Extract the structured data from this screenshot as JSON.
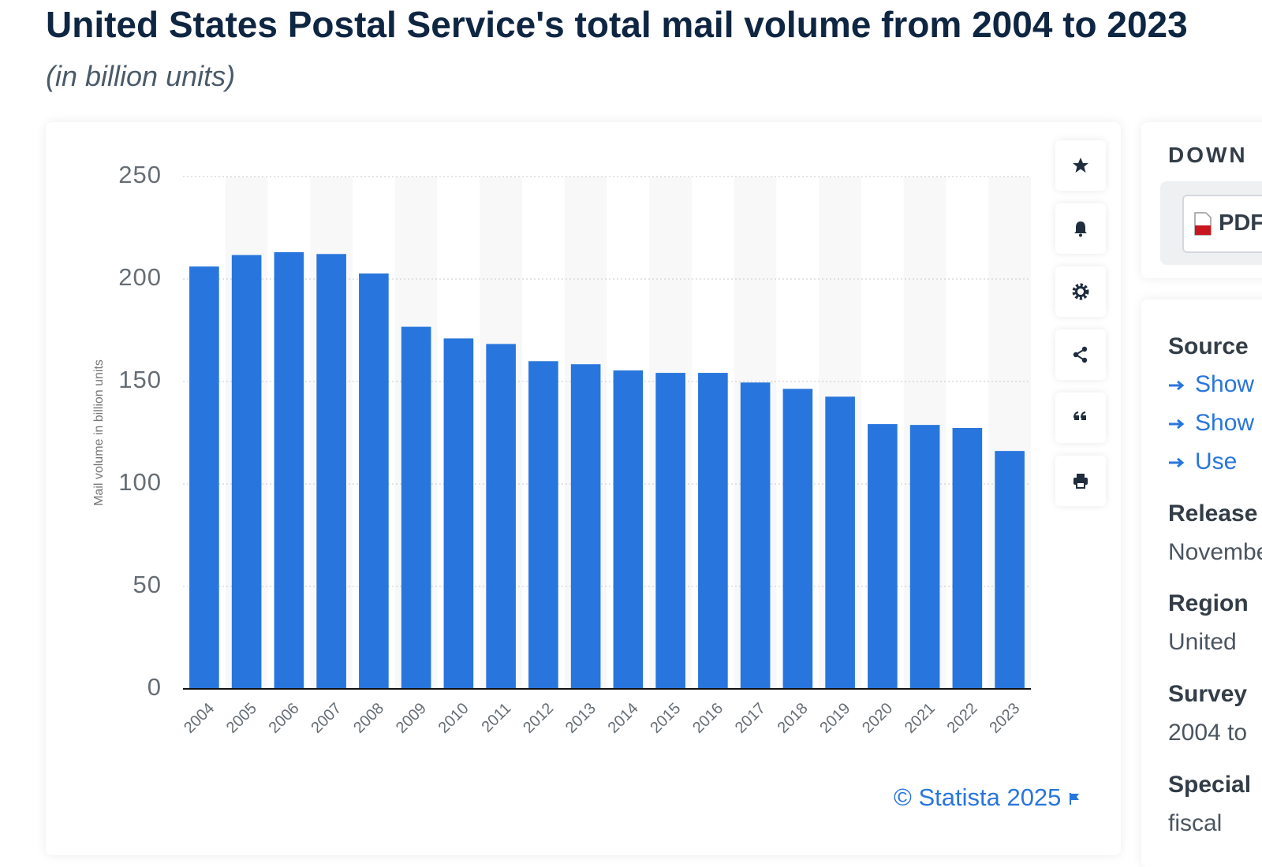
{
  "header": {
    "title": "United States Postal Service's total mail volume from 2004 to 2023",
    "subtitle": "(in billion units)"
  },
  "chart_data": {
    "type": "bar",
    "y_axis_label": "Mail volume in billion units",
    "categories": [
      "2004",
      "2005",
      "2006",
      "2007",
      "2008",
      "2009",
      "2010",
      "2011",
      "2012",
      "2013",
      "2014",
      "2015",
      "2016",
      "2017",
      "2018",
      "2019",
      "2020",
      "2021",
      "2022",
      "2023"
    ],
    "values": [
      206.1,
      211.7,
      213.1,
      212.2,
      202.7,
      176.7,
      171.0,
      168.3,
      159.9,
      158.4,
      155.4,
      154.2,
      154.2,
      149.5,
      146.4,
      142.6,
      129.2,
      128.8,
      127.3,
      116.1
    ],
    "color": "#2876dd",
    "ylim": [
      0,
      250
    ],
    "yticks": [
      0,
      50,
      100,
      150,
      200,
      250
    ],
    "grid": true,
    "credit": "© Statista 2025"
  },
  "sidebar": {
    "download": {
      "title": "DOWN",
      "pdf": "PDF"
    },
    "details": {
      "source": "Source",
      "link1": "Show",
      "link2": "Show",
      "link3": "Use",
      "release_label": "Release",
      "release_value": "November",
      "region_label": "Region",
      "region_value": "United",
      "survey_label": "Survey",
      "survey_value": "2004 to",
      "special_label": "Special",
      "special_value": "fiscal"
    }
  }
}
